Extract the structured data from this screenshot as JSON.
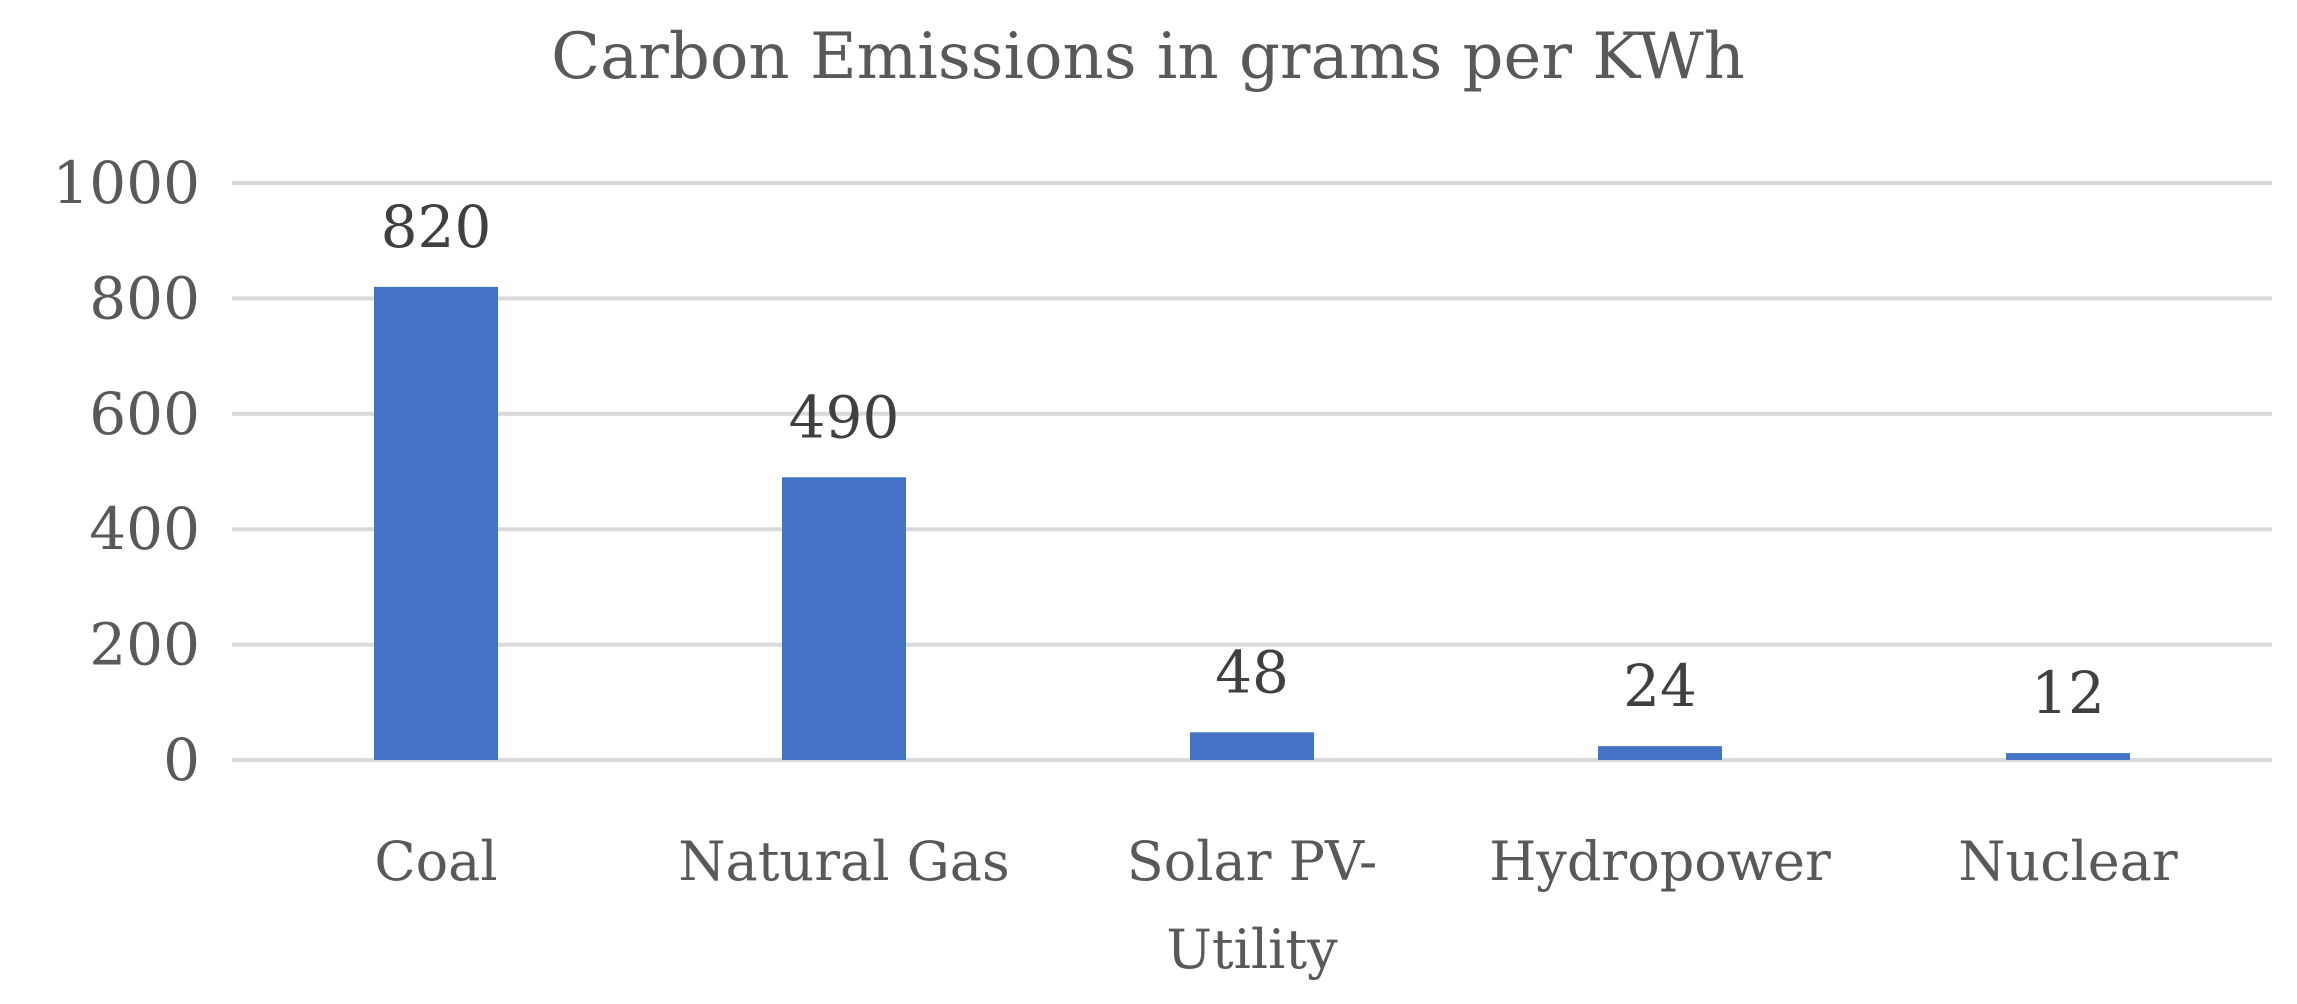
{
  "chart_data": {
    "type": "bar",
    "title": "Carbon Emissions in grams per KWh",
    "categories": [
      "Coal",
      "Natural Gas",
      "Solar PV-Utility",
      "Hydropower",
      "Nuclear"
    ],
    "category_lines": [
      [
        "Coal"
      ],
      [
        "Natural Gas"
      ],
      [
        "Solar PV-",
        "Utility"
      ],
      [
        "Hydropower"
      ],
      [
        "Nuclear"
      ]
    ],
    "values": [
      820,
      490,
      48,
      24,
      12
    ],
    "data_labels": [
      "820",
      "490",
      "48",
      "24",
      "12"
    ],
    "xlabel": "",
    "ylabel": "",
    "ylim": [
      0,
      1000
    ],
    "yticks": [
      0,
      200,
      400,
      600,
      800,
      1000
    ],
    "grid": true,
    "legend": "none",
    "bar_color": "#4472c4",
    "grid_color": "#d9d9d9",
    "text_color": "#595959"
  }
}
